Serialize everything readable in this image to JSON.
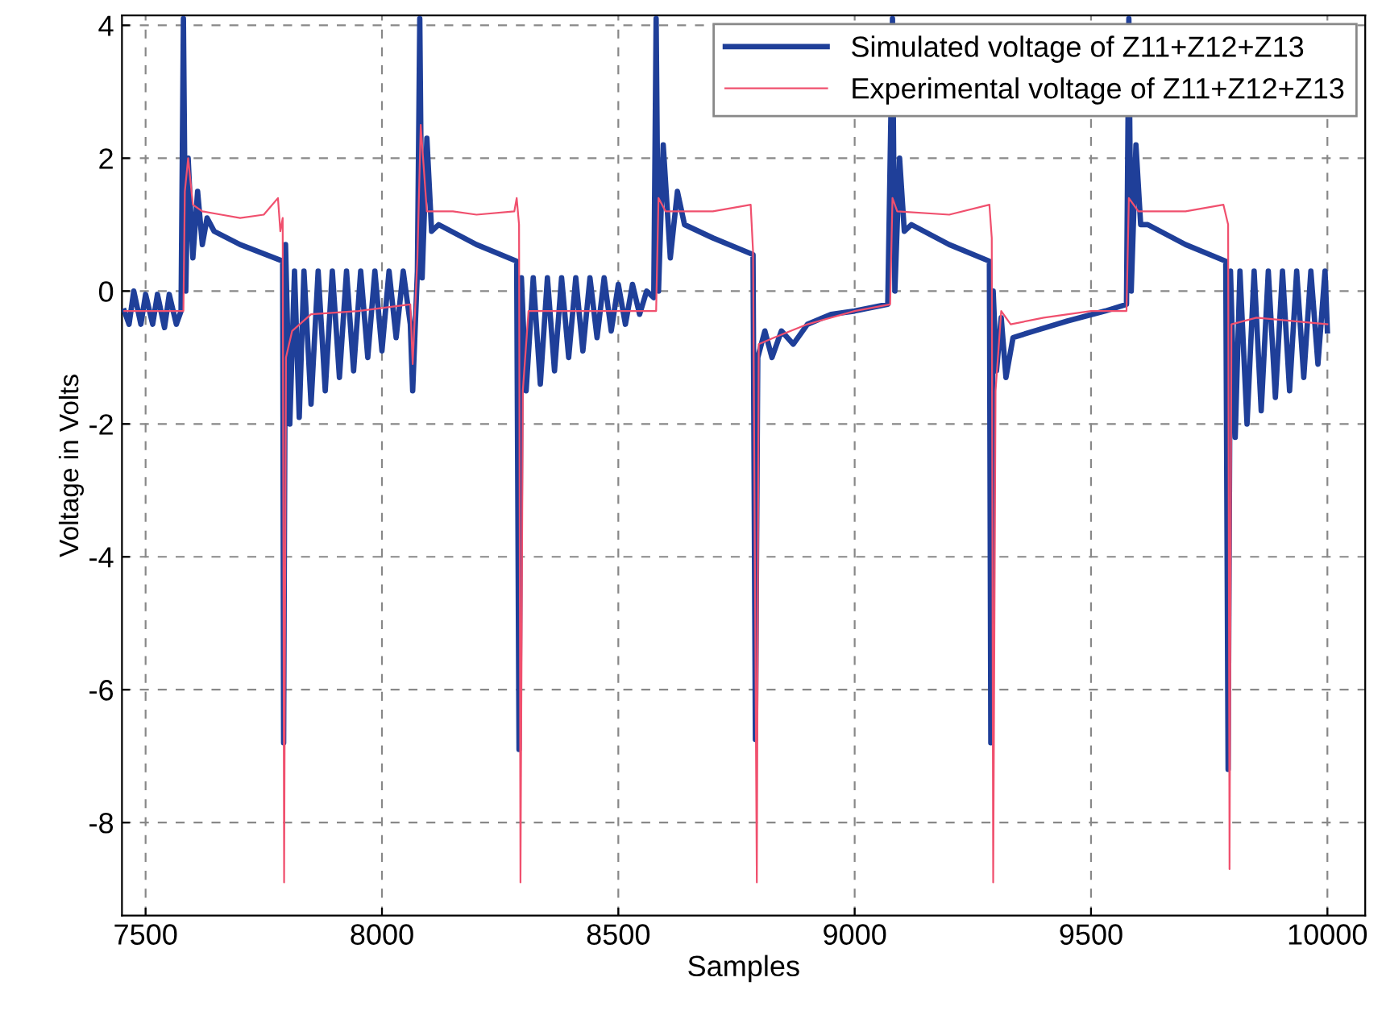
{
  "chart_data": {
    "type": "line",
    "xlabel": "Samples",
    "ylabel": "Voltage in Volts",
    "xlim": [
      7450,
      10080
    ],
    "ylim": [
      -9.4,
      4.15
    ],
    "xticks": [
      7500,
      8000,
      8500,
      9000,
      9500,
      10000
    ],
    "yticks": [
      -8,
      -6,
      -4,
      -2,
      0,
      2,
      4
    ],
    "grid": true,
    "legend": "top right",
    "marker": "none",
    "line_style": "solid",
    "series": [
      {
        "name": "Simulated voltage of Z11+Z12+Z13",
        "color": "#1f3f99",
        "x": [
          7455,
          7465,
          7475,
          7490,
          7500,
          7515,
          7525,
          7540,
          7550,
          7565,
          7575,
          7580,
          7585,
          7590,
          7600,
          7610,
          7620,
          7630,
          7645,
          7700,
          7790,
          7792,
          7796,
          7805,
          7815,
          7825,
          7835,
          7850,
          7865,
          7880,
          7895,
          7910,
          7925,
          7940,
          7955,
          7970,
          7985,
          8000,
          8015,
          8030,
          8045,
          8060,
          8065,
          8075,
          8080,
          8085,
          8095,
          8105,
          8120,
          8200,
          8285,
          8290,
          8295,
          8305,
          8320,
          8335,
          8350,
          8365,
          8380,
          8395,
          8410,
          8425,
          8440,
          8455,
          8470,
          8485,
          8500,
          8515,
          8530,
          8545,
          8560,
          8575,
          8580,
          8585,
          8595,
          8610,
          8625,
          8640,
          8700,
          8785,
          8790,
          8795,
          8810,
          8825,
          8845,
          8870,
          8900,
          8950,
          9000,
          9070,
          9080,
          9085,
          9095,
          9105,
          9120,
          9200,
          9285,
          9288,
          9293,
          9300,
          9310,
          9320,
          9335,
          9380,
          9450,
          9530,
          9575,
          9580,
          9585,
          9595,
          9605,
          9620,
          9700,
          9785,
          9790,
          9795,
          9805,
          9815,
          9830,
          9845,
          9860,
          9875,
          9890,
          9905,
          9920,
          9935,
          9950,
          9965,
          9980,
          9995,
          10000
        ],
        "values": [
          -0.3,
          -0.5,
          0.0,
          -0.5,
          -0.05,
          -0.5,
          -0.05,
          -0.55,
          -0.05,
          -0.5,
          -0.3,
          4.1,
          0.0,
          2.0,
          0.5,
          1.5,
          0.7,
          1.1,
          0.9,
          0.7,
          0.45,
          -6.8,
          0.7,
          -2.0,
          0.3,
          -1.9,
          0.3,
          -1.7,
          0.3,
          -1.5,
          0.3,
          -1.3,
          0.3,
          -1.2,
          0.3,
          -1.0,
          0.3,
          -0.9,
          0.3,
          -0.7,
          0.3,
          -0.5,
          -1.5,
          0.3,
          4.1,
          0.2,
          2.3,
          0.9,
          1.0,
          0.7,
          0.45,
          -6.9,
          0.2,
          -1.5,
          0.2,
          -1.4,
          0.2,
          -1.2,
          0.2,
          -1.0,
          0.2,
          -0.9,
          0.2,
          -0.7,
          0.2,
          -0.6,
          0.1,
          -0.5,
          0.1,
          -0.35,
          0.0,
          -0.1,
          4.1,
          0.0,
          2.2,
          0.5,
          1.5,
          1.0,
          0.8,
          0.55,
          -6.75,
          -1.0,
          -0.6,
          -1.0,
          -0.6,
          -0.8,
          -0.5,
          -0.35,
          -0.3,
          -0.2,
          4.1,
          0.0,
          2.0,
          0.9,
          1.0,
          0.7,
          0.45,
          -6.8,
          0.0,
          -1.2,
          -0.4,
          -1.3,
          -0.7,
          -0.6,
          -0.45,
          -0.3,
          -0.2,
          4.1,
          0.0,
          2.2,
          1.0,
          1.0,
          0.7,
          0.45,
          -7.2,
          0.3,
          -2.2,
          0.3,
          -2.0,
          0.3,
          -1.8,
          0.3,
          -1.6,
          0.3,
          -1.5,
          0.3,
          -1.3,
          0.3,
          -1.1,
          0.3,
          -0.6
        ]
      },
      {
        "name": "Experimental voltage of Z11+Z12+Z13",
        "color": "#f0506e",
        "x": [
          7455,
          7580,
          7583,
          7590,
          7600,
          7620,
          7660,
          7700,
          7750,
          7780,
          7785,
          7790,
          7793,
          7797,
          7810,
          7850,
          7950,
          8060,
          8065,
          8075,
          8082,
          8095,
          8150,
          8200,
          8280,
          8285,
          8290,
          8293,
          8298,
          8310,
          8450,
          8580,
          8585,
          8600,
          8700,
          8780,
          8785,
          8793,
          8797,
          8830,
          8900,
          9000,
          9075,
          9080,
          9090,
          9200,
          9285,
          9290,
          9293,
          9298,
          9310,
          9330,
          9400,
          9500,
          9575,
          9580,
          9600,
          9700,
          9780,
          9790,
          9793,
          9797,
          9850,
          10000
        ],
        "values": [
          -0.3,
          -0.3,
          1.5,
          2.0,
          1.3,
          1.2,
          1.15,
          1.1,
          1.15,
          1.4,
          0.9,
          1.1,
          -8.9,
          -1.0,
          -0.6,
          -0.35,
          -0.3,
          -0.2,
          -1.1,
          0.5,
          2.5,
          1.2,
          1.2,
          1.15,
          1.2,
          1.4,
          1.0,
          -8.9,
          -1.5,
          -0.3,
          -0.3,
          -0.3,
          1.4,
          1.2,
          1.2,
          1.3,
          0.6,
          -8.9,
          -0.8,
          -0.7,
          -0.5,
          -0.3,
          -0.2,
          1.4,
          1.2,
          1.15,
          1.3,
          0.8,
          -8.9,
          -1.5,
          -0.3,
          -0.5,
          -0.4,
          -0.3,
          -0.3,
          1.4,
          1.2,
          1.2,
          1.3,
          1.0,
          -8.7,
          -0.5,
          -0.4,
          -0.5
        ]
      }
    ]
  }
}
